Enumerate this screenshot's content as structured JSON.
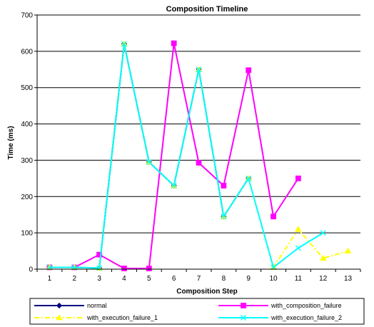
{
  "chart_data": {
    "type": "line",
    "title": "Composition Timeline",
    "xlabel": "Composition Step",
    "ylabel": "Time (ms)",
    "categories": [
      "1",
      "2",
      "3",
      "4",
      "5",
      "6",
      "7",
      "8",
      "9",
      "10",
      "11",
      "12",
      "13"
    ],
    "ylim": [
      0,
      700
    ],
    "yticks": [
      0,
      100,
      200,
      300,
      400,
      500,
      600,
      700
    ],
    "grid": "horizontal",
    "legend_position": "bottom",
    "series": [
      {
        "name": "normal",
        "color": "#000080",
        "marker": "diamond",
        "dash": "solid",
        "values": [
          5,
          5,
          3,
          620,
          295,
          230,
          550,
          145,
          250,
          null,
          null,
          null,
          null
        ]
      },
      {
        "name": "with_composition_failure",
        "color": "#FF00FF",
        "marker": "square",
        "dash": "solid",
        "values": [
          5,
          5,
          40,
          2,
          2,
          622,
          293,
          230,
          548,
          145,
          250,
          null,
          null
        ]
      },
      {
        "name": "with_execution_failure_1",
        "color": "#FFFF00",
        "marker": "triangle",
        "dash": "dashdot",
        "values": [
          5,
          5,
          3,
          620,
          295,
          230,
          550,
          145,
          250,
          5,
          110,
          30,
          50
        ]
      },
      {
        "name": "with_execution_failure_2",
        "color": "#00FFFF",
        "marker": "x",
        "dash": "solid",
        "values": [
          5,
          5,
          3,
          620,
          295,
          230,
          550,
          145,
          250,
          5,
          58,
          100,
          null
        ]
      }
    ]
  }
}
